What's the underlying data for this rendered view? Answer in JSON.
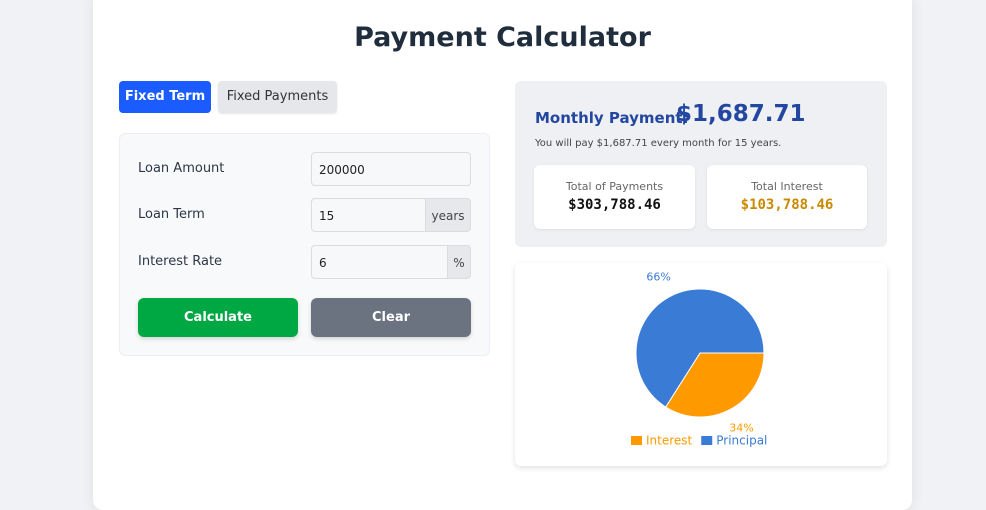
{
  "header": {
    "title": "Payment Calculator"
  },
  "tabs": [
    "Fixed Term",
    "Fixed Payments"
  ],
  "form": {
    "fields": [
      {
        "label": "Loan Amount",
        "value": "200000"
      },
      {
        "label": "Loan Term",
        "value": "15",
        "unit": "years"
      },
      {
        "label": "Interest Rate",
        "value": "6",
        "unit": "%"
      }
    ],
    "buttons": [
      "Calculate",
      "Clear"
    ]
  },
  "summary": {
    "label": "Monthly Payment:",
    "amount": "$1,687.71",
    "note": "You will pay $1,687.71 every month for 15 years.",
    "cards": [
      {
        "label": "Total of Payments",
        "value": "$303,788.46"
      },
      {
        "label": "Total Interest",
        "value": "$103,788.46"
      }
    ]
  },
  "chart_data": {
    "type": "pie",
    "categories": [
      "Interest",
      "Principal"
    ],
    "values": [
      34,
      66
    ],
    "value_labels": [
      "34%",
      "66%"
    ],
    "colors": [
      "#ff9900",
      "#3a7bd5"
    ]
  }
}
